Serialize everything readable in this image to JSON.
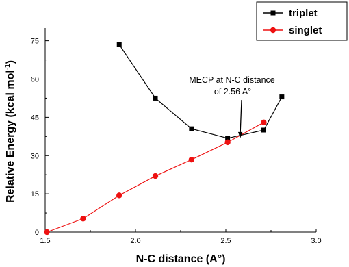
{
  "chart_data": {
    "type": "line",
    "title": "",
    "xlabel": "N-C distance (A°)",
    "ylabel": "Relative Energy (kcal mol",
    "ylabel_sup": "-1",
    "ylabel_close": ")",
    "xlim": [
      1.5,
      3.0
    ],
    "ylim": [
      0,
      80
    ],
    "x_ticks": [
      "1.5",
      "2.0",
      "2.5",
      "3.0"
    ],
    "y_ticks": [
      "0",
      "15",
      "30",
      "45",
      "60",
      "75"
    ],
    "grid": false,
    "legend_position": "top-right",
    "series": [
      {
        "name": "triplet",
        "color": "#000000",
        "marker": "square",
        "x": [
          1.91,
          2.11,
          2.31,
          2.51,
          2.71,
          2.81
        ],
        "y": [
          73.5,
          52.5,
          40.5,
          36.8,
          40.0,
          53.0
        ]
      },
      {
        "name": "singlet",
        "color": "#ee1111",
        "marker": "circle",
        "x": [
          1.51,
          1.71,
          1.91,
          2.11,
          2.31,
          2.51,
          2.71
        ],
        "y": [
          0.0,
          5.3,
          14.4,
          22.0,
          28.4,
          35.2,
          43.0
        ]
      }
    ],
    "annotation": {
      "line1": "MECP at N-C distance",
      "line2": "of 2.56 A°",
      "arrow_to": {
        "x": 2.58,
        "y": 36.8
      }
    }
  }
}
